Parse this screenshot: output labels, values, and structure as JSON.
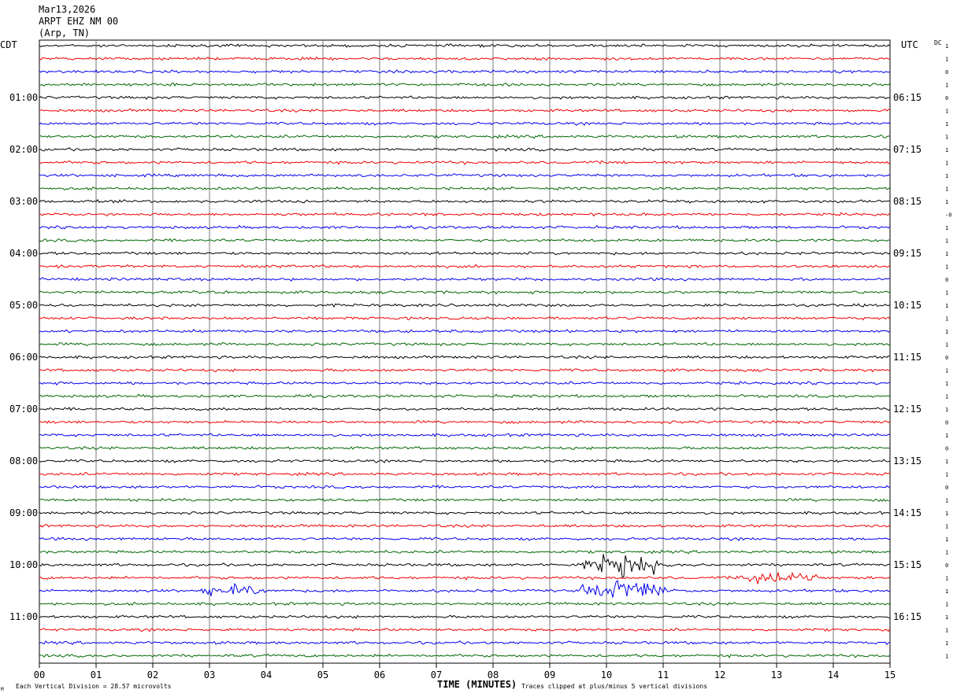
{
  "header": {
    "date": "Mar13,2026",
    "station": "ARPT EHZ NM 00",
    "location": "(Arp, TN)"
  },
  "labels": {
    "left_timezone": "CDT",
    "right_timezone": "UTC",
    "dc_label": "DC",
    "x_axis_title": "TIME (MINUTES)",
    "scale_note": "Each Vertical Division =   28.57 microvolts",
    "clip_note": "Traces clipped at plus/minus 5 vertical divisions",
    "corner_mark": "M"
  },
  "colors": {
    "trace_cycle": [
      "#000000",
      "#ee0000",
      "#0000ee",
      "#006600"
    ],
    "grid": "#555555",
    "text": "#000000"
  },
  "chart_data": {
    "type": "line",
    "description_of_series": "helicorder traces, 48 rows of 15 minutes each",
    "x_ticks": [
      "00",
      "01",
      "02",
      "03",
      "04",
      "05",
      "06",
      "07",
      "08",
      "09",
      "10",
      "11",
      "12",
      "13",
      "14",
      "15"
    ],
    "xlim": [
      0,
      15
    ],
    "rows": 48,
    "left_time_labels": [
      "01:00",
      "02:00",
      "03:00",
      "04:00",
      "05:00",
      "06:00",
      "07:00",
      "08:00",
      "09:00",
      "10:00",
      "11:00"
    ],
    "right_time_labels": [
      "06:15",
      "07:15",
      "08:15",
      "09:15",
      "10:15",
      "11:15",
      "12:15",
      "13:15",
      "14:15",
      "15:15",
      "16:15"
    ],
    "dc_values": [
      "1",
      "1",
      "0",
      "1",
      "0",
      "1",
      "1",
      "1",
      "1",
      "1",
      "1",
      "1",
      "1",
      "-0",
      "1",
      "1",
      "1",
      "1",
      "0",
      "1",
      "1",
      "1",
      "1",
      "1",
      "0",
      "1",
      "1",
      "1",
      "1",
      "0",
      "1",
      "0",
      "1",
      "1",
      "0",
      "1",
      "1",
      "1",
      "1",
      "1",
      "0",
      "1",
      "1",
      "1",
      "1",
      "1",
      "1",
      "1"
    ],
    "events": [
      {
        "row": 26,
        "t_start": 0.85,
        "t_end": 1.05,
        "amp": 2.5
      },
      {
        "row": 25,
        "t_start": 10.8,
        "t_end": 11.1,
        "amp": 1.5
      },
      {
        "row": 26,
        "t_start": 11.2,
        "t_end": 11.4,
        "amp": 1.5
      },
      {
        "row": 29,
        "t_start": 2.9,
        "t_end": 3.5,
        "amp": 1.6
      },
      {
        "row": 34,
        "t_start": 2.9,
        "t_end": 3.0,
        "amp": 2.0
      },
      {
        "row": 35,
        "t_start": 9.7,
        "t_end": 9.95,
        "amp": 3.0
      },
      {
        "row": 35,
        "t_start": 10.7,
        "t_end": 10.9,
        "amp": 3.5
      },
      {
        "row": 37,
        "t_start": 12.9,
        "t_end": 13.2,
        "amp": 1.2
      },
      {
        "row": 38,
        "t_start": 1.9,
        "t_end": 2.5,
        "amp": 1.1
      },
      {
        "row": 40,
        "t_start": 9.5,
        "t_end": 10.9,
        "amp": 18
      },
      {
        "row": 41,
        "t_start": 12.3,
        "t_end": 13.7,
        "amp": 11
      },
      {
        "row": 42,
        "t_start": 2.8,
        "t_end": 4.0,
        "amp": 9
      },
      {
        "row": 42,
        "t_start": 9.5,
        "t_end": 11.2,
        "amp": 14
      },
      {
        "row": 42,
        "t_start": 4.3,
        "t_end": 4.5,
        "amp": 2.5
      },
      {
        "row": 43,
        "t_start": 2.2,
        "t_end": 2.5,
        "amp": 1.8
      },
      {
        "row": 45,
        "t_start": 3.0,
        "t_end": 4.4,
        "amp": 1.4
      }
    ]
  }
}
